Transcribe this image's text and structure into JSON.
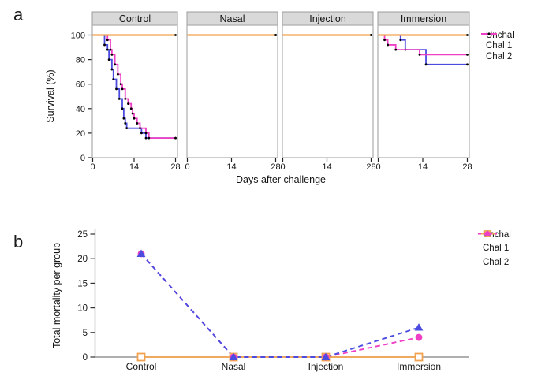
{
  "figure": {
    "panel_a_letter": "a",
    "panel_b_letter": "b"
  },
  "chart_data": [
    {
      "id": "panel_a",
      "type": "line",
      "subtype": "kaplan-meier-step-faceted",
      "facets": [
        "Control",
        "Nasal",
        "Injection",
        "Immersion"
      ],
      "xlabel": "Days after challenge",
      "ylabel": "Survival (%)",
      "xlim": [
        0,
        28
      ],
      "xticks": [
        0,
        14,
        28
      ],
      "ylim": [
        0,
        100
      ],
      "yticks": [
        100,
        80,
        60,
        40,
        20,
        0
      ],
      "grid": false,
      "legend_position": "right",
      "point_marker_color": "#000000",
      "series": [
        {
          "name": "Unchal",
          "color": "#F2A24E",
          "linetype": "solid",
          "facet_points": {
            "Control": [
              [
                0,
                100
              ],
              [
                28,
                100
              ]
            ],
            "Nasal": [
              [
                0,
                100
              ],
              [
                28,
                100
              ]
            ],
            "Injection": [
              [
                0,
                100
              ],
              [
                28,
                100
              ]
            ],
            "Immersion": [
              [
                0,
                100
              ],
              [
                28,
                100
              ]
            ]
          }
        },
        {
          "name": "Chal 1",
          "color": "#4B4BE0",
          "linetype": "solid",
          "facet_points": {
            "Control": [
              [
                0,
                100
              ],
              [
                4,
                92
              ],
              [
                5,
                88
              ],
              [
                5.5,
                80
              ],
              [
                6.5,
                72
              ],
              [
                7,
                64
              ],
              [
                8,
                56
              ],
              [
                9,
                48
              ],
              [
                10,
                40
              ],
              [
                10.5,
                32
              ],
              [
                11,
                28
              ],
              [
                11.5,
                24
              ],
              [
                16.5,
                20
              ],
              [
                18,
                16
              ],
              [
                28,
                16
              ]
            ],
            "Nasal": [
              [
                0,
                100
              ],
              [
                28,
                100
              ]
            ],
            "Injection": [
              [
                0,
                100
              ],
              [
                28,
                100
              ]
            ],
            "Immersion": [
              [
                0,
                100
              ],
              [
                7,
                96
              ],
              [
                8.5,
                88
              ],
              [
                15,
                76
              ],
              [
                28,
                76
              ]
            ]
          }
        },
        {
          "name": "Chal 2",
          "color": "#EF40C5",
          "linetype": "solid",
          "facet_points": {
            "Control": [
              [
                0,
                100
              ],
              [
                5,
                96
              ],
              [
                6,
                88
              ],
              [
                6.5,
                84
              ],
              [
                7.5,
                76
              ],
              [
                8.5,
                68
              ],
              [
                9.5,
                60
              ],
              [
                10,
                56
              ],
              [
                11,
                48
              ],
              [
                12,
                44
              ],
              [
                13,
                40
              ],
              [
                13.5,
                36
              ],
              [
                14,
                32
              ],
              [
                15,
                28
              ],
              [
                16,
                24
              ],
              [
                18,
                20
              ],
              [
                19,
                16
              ],
              [
                28,
                16
              ]
            ],
            "Nasal": [
              [
                0,
                100
              ],
              [
                28,
                100
              ]
            ],
            "Injection": [
              [
                0,
                100
              ],
              [
                28,
                100
              ]
            ],
            "Immersion": [
              [
                0,
                100
              ],
              [
                2,
                96
              ],
              [
                3,
                92
              ],
              [
                5.5,
                88
              ],
              [
                13,
                84
              ],
              [
                28,
                84
              ]
            ]
          }
        }
      ]
    },
    {
      "id": "panel_b",
      "type": "line",
      "categories": [
        "Control",
        "Nasal",
        "Injection",
        "Immersion"
      ],
      "xlabel": "",
      "ylabel": "Total mortality per group",
      "ylim": [
        0,
        25
      ],
      "yticks": [
        25,
        20,
        15,
        10,
        5,
        0
      ],
      "grid": false,
      "legend_position": "right",
      "axis_color": "#7f7f7f",
      "series": [
        {
          "name": "Unchal",
          "color": "#F2A24E",
          "marker": "square-open",
          "dash": false,
          "values": [
            0,
            0,
            0,
            0
          ]
        },
        {
          "name": "Chal 1",
          "color": "#4B4BE0",
          "marker": "triangle",
          "dash": true,
          "values": [
            21,
            0,
            0,
            6
          ]
        },
        {
          "name": "Chal 2",
          "color": "#EF40C5",
          "marker": "circle",
          "dash": true,
          "values": [
            21,
            0,
            0,
            4
          ]
        }
      ]
    }
  ]
}
